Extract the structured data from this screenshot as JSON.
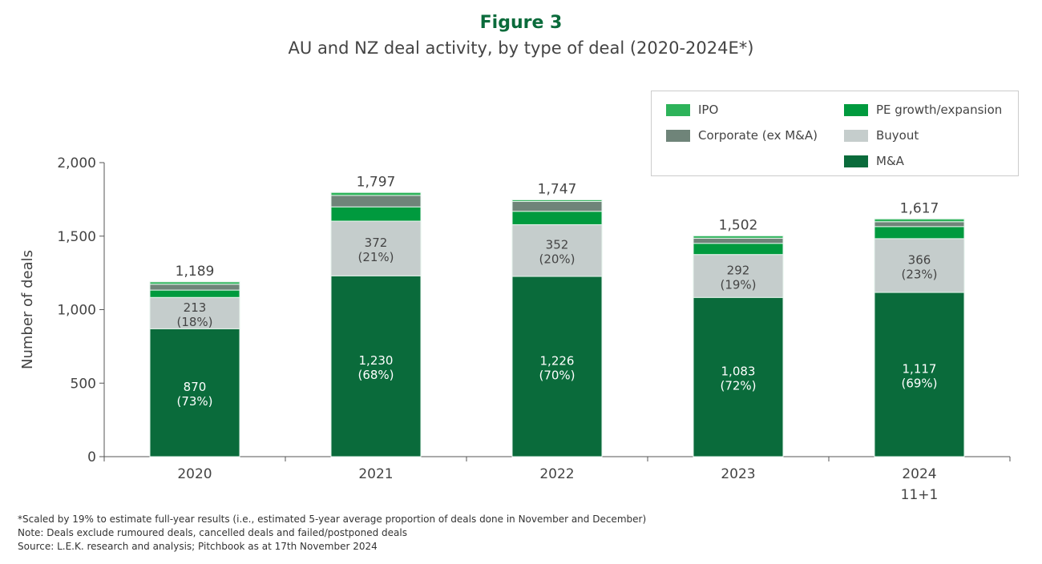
{
  "figure_label": "Figure 3",
  "chart_data": {
    "type": "bar",
    "stacked": true,
    "title": "AU and NZ deal activity, by type of deal (2020-2024E*)",
    "xlabel": "",
    "ylabel": "Number of deals",
    "ylim": [
      0,
      2000
    ],
    "yticks": [
      "0",
      "500",
      "1,000",
      "1,500",
      "2,000"
    ],
    "ytick_values": [
      0,
      500,
      1000,
      1500,
      2000
    ],
    "grid": false,
    "legend_position": "top-right",
    "categories": [
      "2020",
      "2021",
      "2022",
      "2023",
      "2024"
    ],
    "category_sublabels": [
      "",
      "",
      "",
      "",
      "11+1"
    ],
    "totals": [
      1189,
      1797,
      1747,
      1502,
      1617
    ],
    "total_labels": [
      "1,189",
      "1,797",
      "1,747",
      "1,502",
      "1,617"
    ],
    "series": [
      {
        "name": "M&A",
        "color": "#0a6b3b",
        "values": [
          870,
          1230,
          1226,
          1083,
          1117
        ],
        "labels": [
          "870",
          "1,230",
          "1,226",
          "1,083",
          "1,117"
        ],
        "pct_labels": [
          "(73%)",
          "(68%)",
          "(70%)",
          "(72%)",
          "(69%)"
        ],
        "label_color": "#ffffff"
      },
      {
        "name": "Buyout",
        "color": "#c5cdcc",
        "values": [
          213,
          372,
          352,
          292,
          366
        ],
        "labels": [
          "213",
          "372",
          "352",
          "292",
          "366"
        ],
        "pct_labels": [
          "(18%)",
          "(21%)",
          "(20%)",
          "(19%)",
          "(23%)"
        ],
        "label_color": "#444444"
      },
      {
        "name": "PE growth/expansion",
        "color": "#009a3e",
        "values": [
          50,
          97,
          91,
          76,
          82
        ]
      },
      {
        "name": "Corporate (ex M&A)",
        "color": "#6f8479",
        "values": [
          40,
          78,
          67,
          35,
          33
        ]
      },
      {
        "name": "IPO",
        "color": "#2db35a",
        "values": [
          16,
          20,
          11,
          16,
          19
        ]
      }
    ]
  },
  "notes": [
    "*Scaled by 19% to estimate full-year results (i.e., estimated 5-year average proportion of deals done in November and December)",
    "Note: Deals exclude rumoured deals, cancelled deals and failed/postponed deals",
    "Source: L.E.K. research and analysis; Pitchbook as at 17th November 2024"
  ]
}
